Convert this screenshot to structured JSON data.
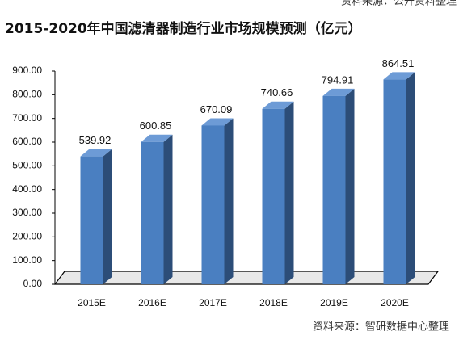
{
  "top_note": "资料来源：公开资料整理",
  "chart_data": {
    "type": "bar3d",
    "title": "2015-2020年中国滤清器制造行业市场规模预测（亿元）",
    "categories": [
      "2015E",
      "2016E",
      "2017E",
      "2018E",
      "2019E",
      "2020E"
    ],
    "values": [
      539.92,
      600.85,
      670.09,
      740.66,
      794.91,
      864.51
    ],
    "color": "#4a7fc1",
    "ylim": [
      0,
      900
    ],
    "yticks": [
      {
        "value": 0,
        "label": "0.00"
      },
      {
        "value": 100,
        "label": "100.00"
      },
      {
        "value": 200,
        "label": "200.00"
      },
      {
        "value": 300,
        "label": "300.00"
      },
      {
        "value": 400,
        "label": "400.00"
      },
      {
        "value": 500,
        "label": "500.00"
      },
      {
        "value": 600,
        "label": "600.00"
      },
      {
        "value": 700,
        "label": "700.00"
      },
      {
        "value": 800,
        "label": "800.00"
      },
      {
        "value": 900,
        "label": "900.00"
      }
    ],
    "source": "资料来源：智研数据中心整理"
  }
}
